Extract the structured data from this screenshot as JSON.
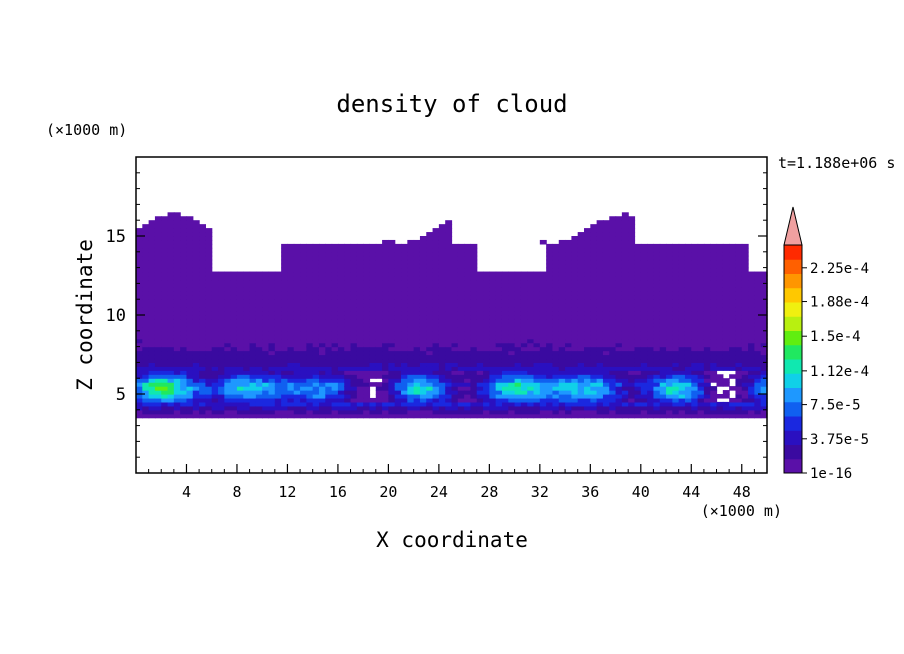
{
  "chart_data": {
    "type": "heatmap",
    "title": "density of cloud",
    "xlabel": "X coordinate",
    "ylabel": "Z coordinate",
    "x_unit": "(×1000 m)",
    "y_unit": "(×1000 m)",
    "time_label": "t=1.188e+06 s",
    "xlim": [
      0,
      50
    ],
    "ylim": [
      0,
      20
    ],
    "x_ticks": [
      4,
      8,
      12,
      16,
      20,
      24,
      28,
      32,
      36,
      40,
      44,
      48
    ],
    "y_ticks": [
      5,
      10,
      15
    ],
    "colorbar": {
      "min": 1e-16,
      "max": 0.00025,
      "labels": [
        "1e-16",
        "3.75e-5",
        "7.5e-5",
        "1.12e-4",
        "1.5e-4",
        "1.88e-4",
        "2.25e-4"
      ],
      "label_values": [
        0,
        3.75e-05,
        7.5e-05,
        0.000112,
        0.00015,
        0.000188,
        0.000225
      ],
      "colors": [
        "#5a10a8",
        "#3a0aa0",
        "#2a10c0",
        "#1a28e0",
        "#1060f0",
        "#1e98ff",
        "#10d0e8",
        "#10e8b0",
        "#20e860",
        "#60ee10",
        "#b8f010",
        "#f0f010",
        "#ffc800",
        "#ff9600",
        "#ff6000",
        "#ff2a00"
      ],
      "extend_color": "#f0a0a0"
    },
    "profile": {
      "z": [
        3.5,
        4.0,
        4.5,
        5.0,
        5.5,
        6.0,
        6.5,
        7.0,
        8.0,
        9.0,
        10.0,
        11.0,
        12.0,
        13.0,
        14.0,
        15.0,
        16.0,
        17.0
      ],
      "density": [
        1e-06,
        2.2e-05,
        6e-05,
        0.00011,
        0.000125,
        8e-05,
        4e-05,
        2.5e-05,
        1.5e-05,
        1e-05,
        6e-06,
        4e-06,
        2.5e-06,
        1e-06,
        5e-07,
        4e-07,
        3e-07,
        2e-07
      ]
    }
  }
}
